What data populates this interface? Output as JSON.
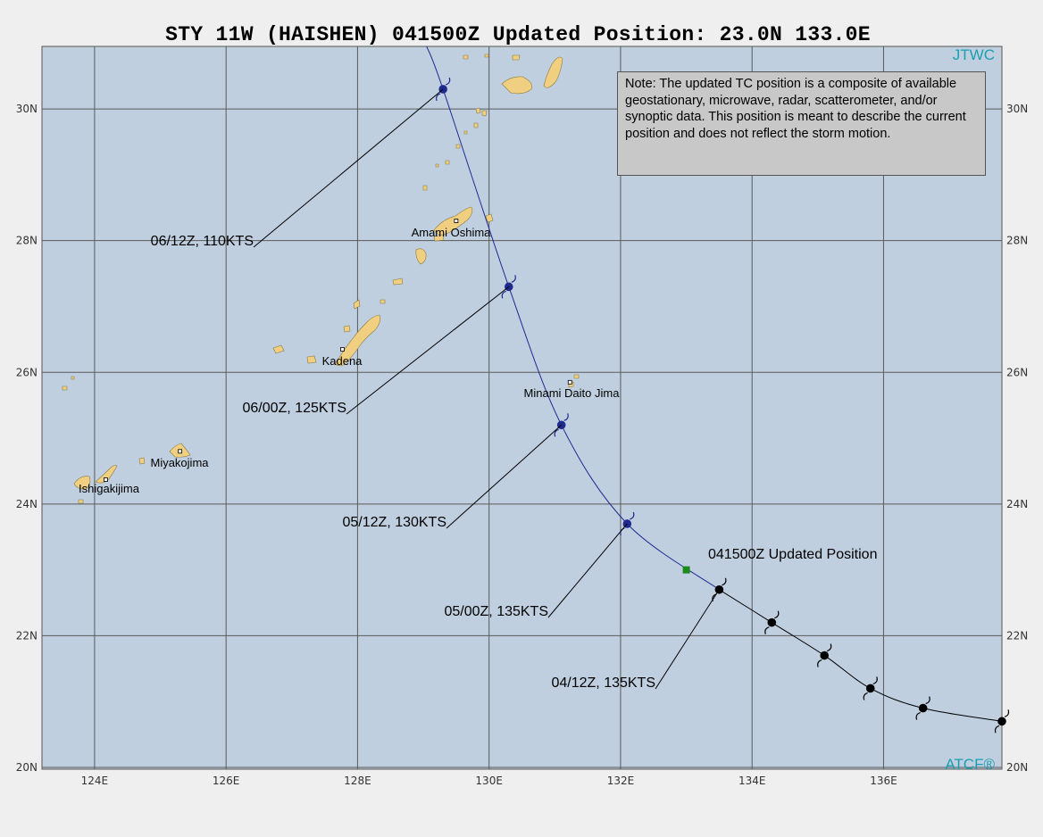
{
  "title": "STY 11W (HAISHEN) 041500Z Updated Position: 23.0N 133.0E",
  "brand_top": "JTWC",
  "brand_bottom": "ATCF®",
  "note": "Note:  The updated TC position is a composite of available geostationary, microwave, radar, scatterometer, and/or synoptic data.   This position is meant to describe the current position and does not reflect the storm motion.",
  "axes": {
    "lon_min": 123.2,
    "lon_max": 137.8,
    "lat_min": 20.0,
    "lat_max": 30.95,
    "lon_ticks": [
      124,
      126,
      128,
      130,
      132,
      134,
      136
    ],
    "lon_labels": [
      "124E",
      "126E",
      "128E",
      "130E",
      "132E",
      "134E",
      "136E"
    ],
    "lat_ticks": [
      20,
      22,
      24,
      26,
      28,
      30
    ],
    "lat_labels": [
      "20N",
      "22N",
      "24N",
      "26N",
      "28N",
      "30N"
    ]
  },
  "colors": {
    "ocean": "#bfcfe0",
    "land": "#f0d080",
    "grid": "#5a5a5a",
    "forecast_track": "#1f2a8f",
    "past_track": "#000000",
    "updated_position": "#1a8a1a"
  },
  "updated_position": {
    "label": "041500Z Updated Position",
    "lat": 23.0,
    "lon": 133.0
  },
  "track_past": [
    {
      "lat": 20.7,
      "lon": 137.8
    },
    {
      "lat": 20.9,
      "lon": 136.6
    },
    {
      "lat": 21.2,
      "lon": 135.8
    },
    {
      "lat": 21.7,
      "lon": 135.1
    },
    {
      "lat": 22.2,
      "lon": 134.3
    },
    {
      "lat": 22.7,
      "lon": 133.5
    }
  ],
  "track_forecast": [
    {
      "lat": 22.7,
      "lon": 133.5
    },
    {
      "lat": 23.7,
      "lon": 132.1
    },
    {
      "lat": 25.2,
      "lon": 131.1
    },
    {
      "lat": 27.3,
      "lon": 130.3
    },
    {
      "lat": 30.3,
      "lon": 129.3
    },
    {
      "lat": 30.95,
      "lon": 129.05
    }
  ],
  "fixes": [
    {
      "label": "04/12Z, 135KTS",
      "lat": 22.7,
      "lon": 133.5
    },
    {
      "label": "05/00Z, 135KTS",
      "lat": 23.7,
      "lon": 132.1
    },
    {
      "label": "05/12Z, 130KTS",
      "lat": 25.2,
      "lon": 131.1
    },
    {
      "label": "06/00Z, 125KTS",
      "lat": 27.3,
      "lon": 130.3
    },
    {
      "label": "06/12Z, 110KTS",
      "lat": 30.3,
      "lon": 129.3
    }
  ],
  "places": [
    {
      "name": "Amami Oshima",
      "lat": 28.3,
      "lon": 129.5
    },
    {
      "name": "Kadena",
      "lat": 26.35,
      "lon": 127.77
    },
    {
      "name": "Minami Daito Jima",
      "lat": 25.85,
      "lon": 131.23
    },
    {
      "name": "Miyakojima",
      "lat": 24.8,
      "lon": 125.3
    },
    {
      "name": "Ishigakijima",
      "lat": 24.37,
      "lon": 124.17
    }
  ]
}
